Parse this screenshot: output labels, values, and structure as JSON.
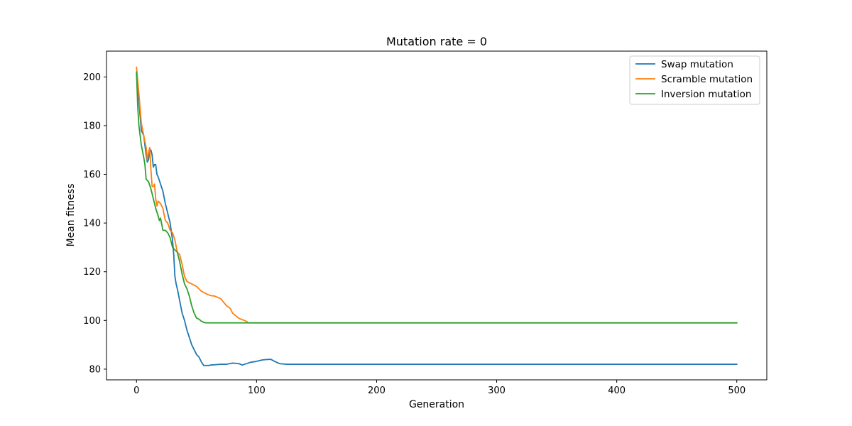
{
  "chart_data": {
    "type": "line",
    "title": "Mutation rate = 0",
    "xlabel": "Generation",
    "ylabel": "Mean fitness",
    "xlim": [
      -25,
      525
    ],
    "ylim": [
      75.6,
      210.6
    ],
    "xticks": [
      0,
      100,
      200,
      300,
      400,
      500
    ],
    "yticks": [
      80,
      100,
      120,
      140,
      160,
      180,
      200
    ],
    "grid": false,
    "legend_position": "top-right",
    "series": [
      {
        "name": "Swap mutation",
        "color": "#1f77b4",
        "x": [
          0,
          2,
          4,
          6,
          8,
          9,
          10,
          11,
          12,
          13,
          14,
          15,
          16,
          17,
          18,
          20,
          22,
          24,
          26,
          28,
          30,
          31,
          32,
          33,
          34,
          36,
          38,
          40,
          42,
          44,
          46,
          48,
          50,
          52,
          54,
          56,
          58,
          60,
          62,
          65,
          70,
          75,
          80,
          85,
          88,
          90,
          95,
          100,
          105,
          110,
          112,
          115,
          118,
          120,
          123,
          125,
          130,
          150,
          200,
          300,
          400,
          500
        ],
        "y": [
          201,
          190,
          178,
          176,
          168,
          165,
          166,
          170,
          170,
          168,
          163,
          164,
          164,
          160,
          159,
          156,
          153,
          148,
          144,
          140,
          133,
          127,
          118,
          115,
          113,
          108,
          103,
          100,
          96,
          93,
          90,
          88,
          86,
          85,
          83,
          81.5,
          81.5,
          81.5,
          81.7,
          81.8,
          82,
          82,
          82.5,
          82.3,
          81.7,
          82,
          82.8,
          83.2,
          83.8,
          84,
          84,
          83.2,
          82.5,
          82.2,
          82.1,
          82,
          82,
          82,
          82,
          82,
          82,
          82
        ]
      },
      {
        "name": "Scramble mutation",
        "color": "#ff7f0e",
        "x": [
          0,
          2,
          4,
          6,
          8,
          9,
          10,
          11,
          12,
          13,
          14,
          15,
          16,
          17,
          18,
          20,
          22,
          24,
          26,
          28,
          30,
          32,
          34,
          36,
          38,
          40,
          42,
          44,
          46,
          48,
          50,
          52,
          54,
          56,
          58,
          60,
          62,
          65,
          70,
          75,
          78,
          80,
          85,
          88,
          90,
          92,
          93,
          100,
          150,
          200,
          300,
          400,
          500
        ],
        "y": [
          204,
          193,
          181,
          176,
          171,
          166,
          169,
          171,
          162,
          155,
          155,
          156,
          150,
          147,
          149,
          148,
          146,
          141,
          140,
          137,
          136,
          133,
          128,
          127,
          123,
          118,
          116,
          115.5,
          115,
          114.5,
          114,
          113,
          112,
          111.5,
          111,
          110.5,
          110.2,
          110,
          109,
          106,
          105,
          103,
          101,
          100.3,
          100,
          99.5,
          99,
          99,
          99,
          99,
          99,
          99,
          99
        ]
      },
      {
        "name": "Inversion mutation",
        "color": "#2ca02c",
        "x": [
          0,
          1,
          2,
          4,
          6,
          7,
          8,
          10,
          12,
          14,
          16,
          18,
          19,
          20,
          22,
          24,
          26,
          28,
          30,
          32,
          34,
          36,
          38,
          40,
          42,
          44,
          46,
          48,
          50,
          52,
          54,
          56,
          58,
          60,
          65,
          70,
          80,
          90,
          100,
          200,
          300,
          400,
          500
        ],
        "y": [
          202,
          188,
          180,
          172,
          167,
          164,
          158,
          157,
          154,
          150,
          146,
          143,
          141,
          142,
          137,
          137,
          136,
          134,
          130,
          129,
          128,
          124,
          119,
          115,
          113,
          110,
          106,
          103,
          101,
          100.5,
          99.7,
          99.2,
          99,
          99,
          99,
          99,
          99,
          99,
          99,
          99,
          99,
          99,
          99
        ]
      }
    ]
  }
}
